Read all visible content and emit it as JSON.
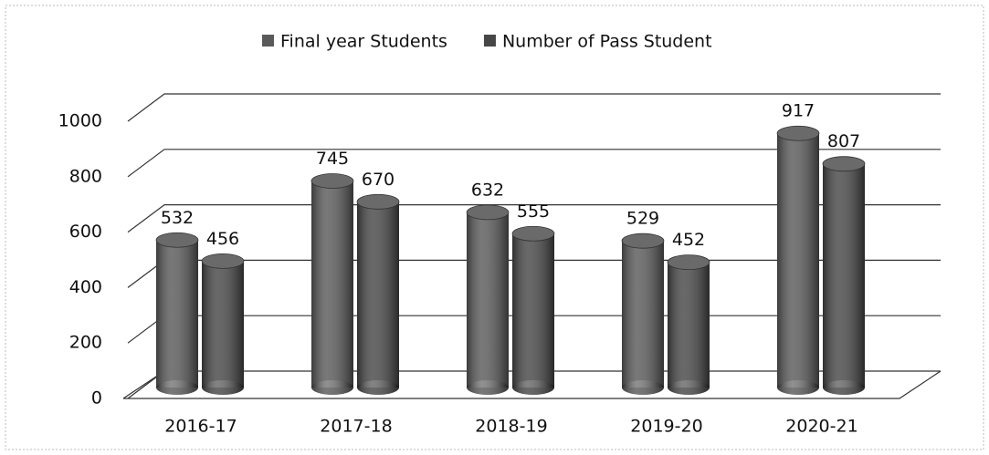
{
  "chart_data": {
    "type": "bar",
    "categories": [
      "2016-17",
      "2017-18",
      "2018-19",
      "2019-20",
      "2020-21"
    ],
    "series": [
      {
        "name": "Final year Students",
        "color": "#5a5a5a",
        "values": [
          532,
          745,
          632,
          529,
          917
        ]
      },
      {
        "name": "Number of Pass Student",
        "color": "#474747",
        "values": [
          456,
          670,
          555,
          452,
          807
        ]
      }
    ],
    "ylim": [
      0,
      1000
    ],
    "yticks": [
      0,
      200,
      400,
      600,
      800,
      1000
    ],
    "grid": true,
    "legend": "top"
  }
}
